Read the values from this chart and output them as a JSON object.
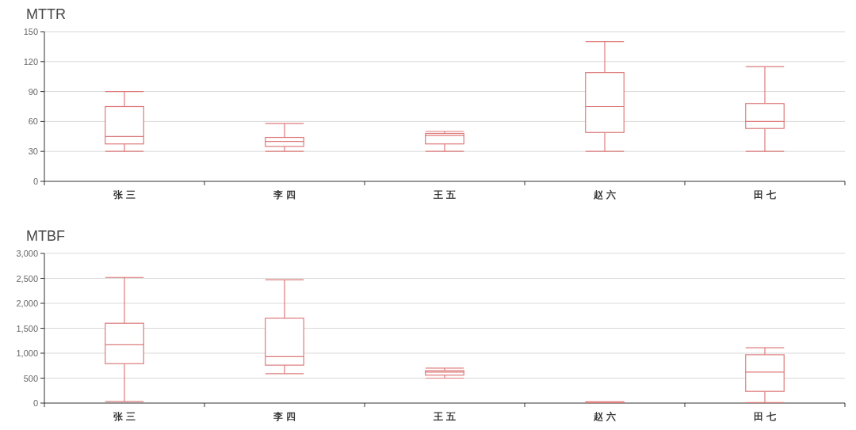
{
  "chart_data": [
    {
      "type": "box",
      "title": "MTTR",
      "categories": [
        "张 三",
        "李 四",
        "王 五",
        "赵 六",
        "田 七"
      ],
      "series": [
        {
          "color": "#dd7b7b",
          "boxes": [
            {
              "low": 30,
              "q1": 37.5,
              "median": 45,
              "q3": 75,
              "high": 90
            },
            {
              "low": 30,
              "q1": 35,
              "median": 40,
              "q3": 44,
              "high": 58
            },
            {
              "low": 30,
              "q1": 37.5,
              "median": 46,
              "q3": 48,
              "high": 50
            },
            {
              "low": 30,
              "q1": 49,
              "median": 75,
              "q3": 109,
              "high": 140
            },
            {
              "low": 30,
              "q1": 53,
              "median": 60,
              "q3": 78,
              "high": 115
            }
          ]
        }
      ],
      "ylim": [
        0,
        150
      ],
      "yticks": [
        0,
        30,
        60,
        90,
        120,
        150
      ],
      "grid": "y"
    },
    {
      "type": "box",
      "title": "MTBF",
      "categories": [
        "张 三",
        "李 四",
        "王 五",
        "赵 六",
        "田 七"
      ],
      "series": [
        {
          "color": "#dd7b7b",
          "boxes": [
            {
              "low": 30,
              "q1": 790,
              "median": 1170,
              "q3": 1600,
              "high": 2520
            },
            {
              "low": 590,
              "q1": 760,
              "median": 930,
              "q3": 1700,
              "high": 2470
            },
            {
              "low": 500,
              "q1": 560,
              "median": 620,
              "q3": 650,
              "high": 700
            },
            {
              "low": 10,
              "q1": 15,
              "median": 20,
              "q3": 20,
              "high": 25
            },
            {
              "low": 10,
              "q1": 235,
              "median": 620,
              "q3": 970,
              "high": 1110
            }
          ]
        }
      ],
      "ylim": [
        0,
        3000
      ],
      "yticks": [
        0,
        {
          "value": 500,
          "label": "500"
        },
        {
          "value": 1000,
          "label": "1,000"
        },
        {
          "value": 1500,
          "label": "1,500"
        },
        {
          "value": 2000,
          "label": "2,000"
        },
        {
          "value": 2500,
          "label": "2,500"
        },
        {
          "value": 3000,
          "label": "3,000"
        }
      ],
      "grid": "y"
    }
  ]
}
